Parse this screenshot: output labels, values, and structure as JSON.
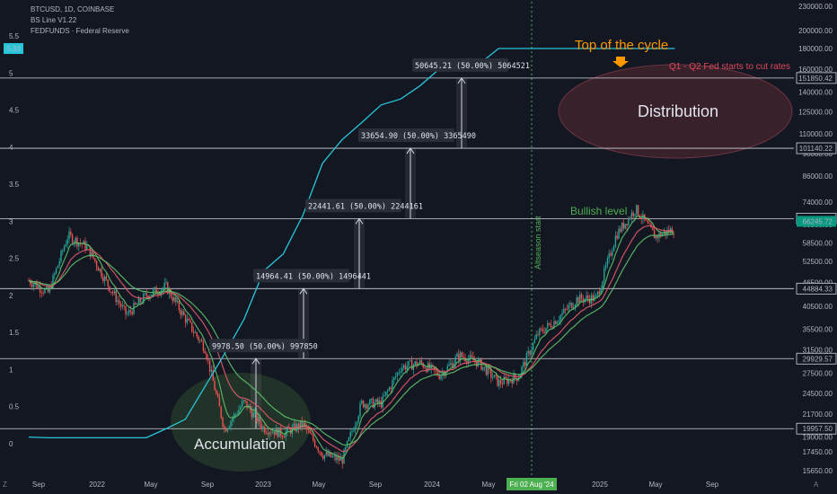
{
  "header": {
    "symbol_line": "BTCUSD, 1D, COINBASE",
    "indicator_line": "BS Line V1.22",
    "series_line": "FEDFUNDS · Federal Reserve"
  },
  "corner": {
    "left": "Z",
    "right": "A"
  },
  "colors": {
    "background": "#131722",
    "fed_line": "#26c6da",
    "up_candle": "#26a69a",
    "down_candle": "#ef5350",
    "ema_green": "#5cbf6a",
    "ema_red": "#e05a6a",
    "altseason": "#4caf50",
    "top_arrow": "#ff9800",
    "accum_fill": "#2e4a2e",
    "dist_fill": "#4a2630"
  },
  "annotations": {
    "top_of_cycle": "Top of the cycle",
    "fed_cut": "Q1 - Q2 Fed starts to cut rates",
    "distribution": "Distribution",
    "accumulation": "Accumulation",
    "bullish_level": "Bullish level",
    "altseason": "Altseason start",
    "date_badge": "Fri 02 Aug '24"
  },
  "chart_data": {
    "type": "line",
    "title": "",
    "x_axis": {
      "labels": [
        "Sep",
        "2022",
        "May",
        "Sep",
        "2023",
        "May",
        "Sep",
        "2024",
        "May",
        "2025",
        "May",
        "Sep"
      ]
    },
    "price_axis": {
      "scale": "log",
      "range": [
        15650,
        230000
      ],
      "ticks": [
        230000,
        200000,
        180000,
        160000,
        140000,
        125000,
        110000,
        98000,
        86000,
        74000,
        65000,
        58500,
        52500,
        46500,
        40500,
        35500,
        31500,
        27500,
        24500,
        21700,
        19000,
        17450,
        15650
      ]
    },
    "rate_axis": {
      "range": [
        0,
        5.5
      ],
      "ticks": [
        5.5,
        5,
        4.5,
        4,
        3.5,
        3,
        2.5,
        2,
        1.5,
        1,
        0.5,
        0
      ],
      "current_value": 5.33
    },
    "series": [
      {
        "name": "FEDFUNDS",
        "x": [
          "2021-08",
          "2021-09",
          "2021-10",
          "2021-11",
          "2021-12",
          "2022-01",
          "2022-02",
          "2022-03",
          "2022-04",
          "2022-05",
          "2022-06",
          "2022-07",
          "2022-08",
          "2022-09",
          "2022-10",
          "2022-11",
          "2022-12",
          "2023-01",
          "2023-02",
          "2023-03",
          "2023-04",
          "2023-05",
          "2023-06",
          "2023-07",
          "2023-08",
          "2023-09",
          "2023-10",
          "2023-11",
          "2023-12",
          "2024-01",
          "2024-02",
          "2024-03",
          "2024-04",
          "2024-05"
        ],
        "values": [
          0.09,
          0.08,
          0.08,
          0.08,
          0.08,
          0.08,
          0.08,
          0.2,
          0.33,
          0.77,
          1.21,
          1.68,
          2.33,
          2.56,
          3.08,
          3.78,
          4.1,
          4.33,
          4.57,
          4.65,
          4.83,
          5.06,
          5.08,
          5.12,
          5.33,
          5.33,
          5.33,
          5.33,
          5.33,
          5.33,
          5.33,
          5.33,
          5.33,
          5.33
        ]
      },
      {
        "name": "BTCUSD",
        "x": [
          "2021-08",
          "2021-09",
          "2021-10",
          "2021-11",
          "2021-12",
          "2022-01",
          "2022-02",
          "2022-03",
          "2022-04",
          "2022-05",
          "2022-06",
          "2022-07",
          "2022-08",
          "2022-09",
          "2022-10",
          "2022-11",
          "2022-12",
          "2023-01",
          "2023-02",
          "2023-03",
          "2023-04",
          "2023-05",
          "2023-06",
          "2023-07",
          "2023-08",
          "2023-09",
          "2023-10",
          "2023-11",
          "2023-12",
          "2024-01",
          "2024-02",
          "2024-03",
          "2024-04",
          "2024-05"
        ],
        "values": [
          47000,
          43800,
          61000,
          57000,
          46300,
          38500,
          43200,
          45500,
          37700,
          31800,
          19900,
          23300,
          20000,
          19400,
          20500,
          17200,
          16600,
          23100,
          23100,
          28500,
          29200,
          27200,
          30500,
          29200,
          26000,
          27000,
          34500,
          37700,
          42300,
          42500,
          61200,
          71300,
          60600,
          63500
        ]
      }
    ],
    "levels": [
      {
        "price": "151850.42",
        "tag": "50645.21 (50.00%) 5064521"
      },
      {
        "price": "101140.22",
        "tag": "33654.90 (50.00%) 3365490"
      },
      {
        "price": "67311.47",
        "tag": "22441.61 (50.00%) 2244161"
      },
      {
        "price": "44884.33",
        "tag": "14964.41 (50.00%) 1496441"
      },
      {
        "price": "29929.57",
        "tag": "9978.50 (50.00%) 997850"
      },
      {
        "price": "19957.50",
        "tag": ""
      }
    ],
    "current_price": "66245.72",
    "legend": "none",
    "grid": false
  }
}
